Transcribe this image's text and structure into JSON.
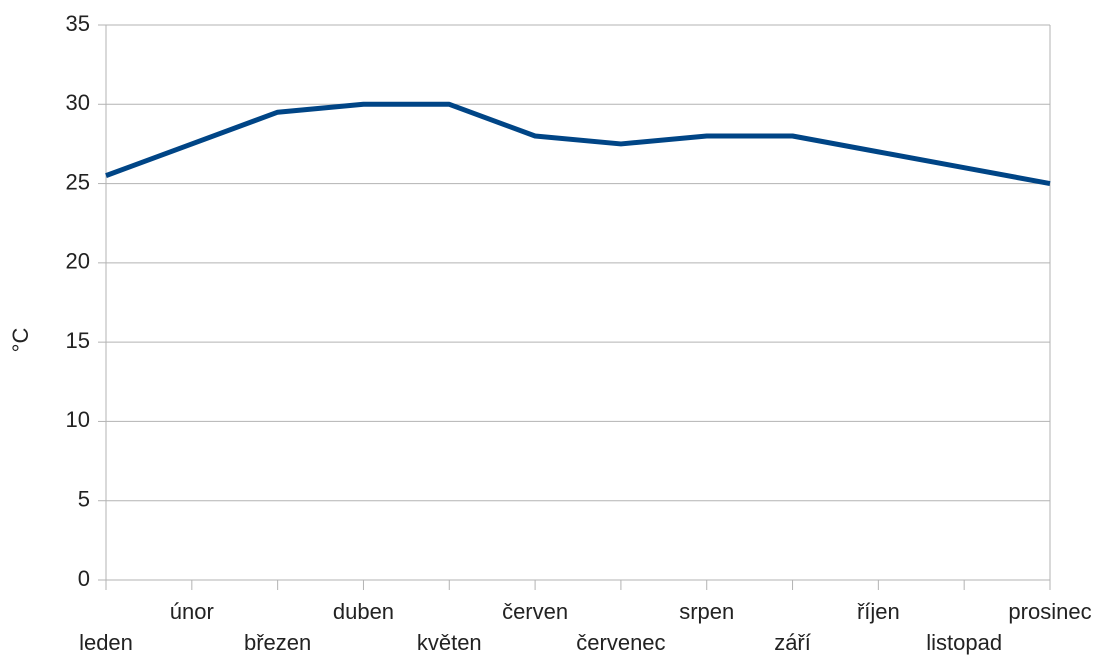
{
  "chart_data": {
    "type": "line",
    "y_label": "°C",
    "categories": [
      "leden",
      "únor",
      "březen",
      "duben",
      "květen",
      "červen",
      "červenec",
      "srpen",
      "září",
      "říjen",
      "listopad",
      "prosinec"
    ],
    "series": [
      {
        "color": "#004586",
        "values": [
          25.5,
          27.5,
          29.5,
          30,
          30,
          28,
          27.5,
          28,
          28,
          27,
          26,
          25
        ]
      }
    ],
    "ylim": [
      0,
      35
    ],
    "yticks": [
      0,
      5,
      10,
      15,
      20,
      25,
      30,
      35
    ],
    "grid": true
  }
}
